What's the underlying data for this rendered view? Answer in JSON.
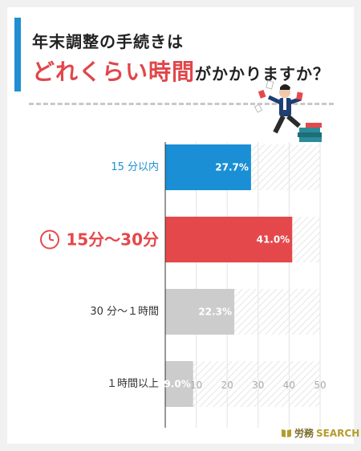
{
  "title": {
    "line1": "年末調整の手続きは",
    "line2_highlight": "どれくらい時間",
    "line2_rest": "がかかりますか？"
  },
  "chart_data": {
    "type": "bar",
    "orientation": "horizontal",
    "categories": [
      "15 分以内",
      "15分〜30分",
      "30 分〜１時間",
      "１時間以上"
    ],
    "values": [
      27.7,
      41.0,
      22.3,
      9.0
    ],
    "value_labels": [
      "27.7%",
      "41.0%",
      "22.3%",
      "9.0%"
    ],
    "highlight_index": 1,
    "xlim": [
      0,
      50
    ],
    "xticks": [
      10,
      20,
      30,
      40,
      50
    ],
    "bar_colors": [
      "#1a8fd5",
      "#e5484b",
      "#cccccc",
      "#cccccc"
    ],
    "label_colors": [
      "#1a8fd5",
      "#e5484b",
      "#333333",
      "#333333"
    ],
    "grid": true
  },
  "logo": {
    "jp": "労務",
    "en": "SEARCH"
  }
}
